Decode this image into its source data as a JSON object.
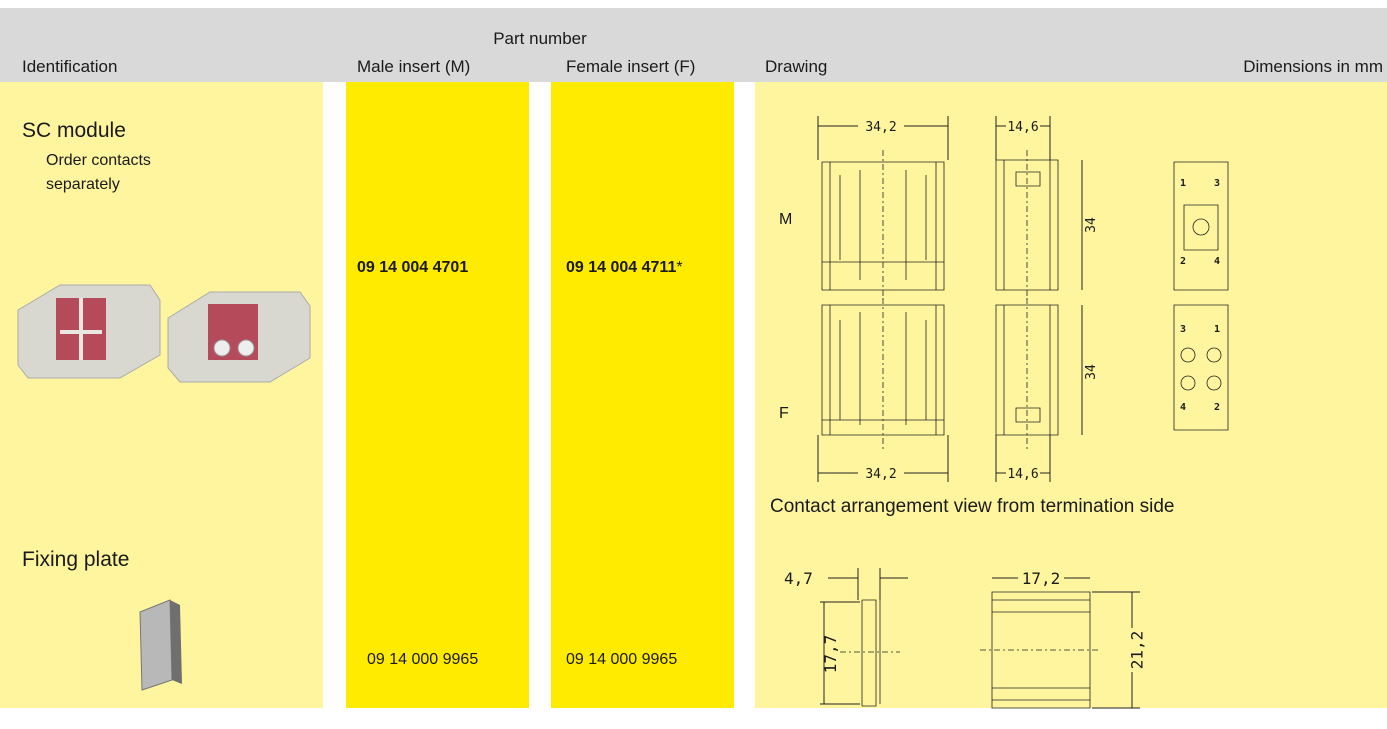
{
  "header": {
    "part_number": "Part number",
    "columns": [
      "Identification",
      "Male insert (M)",
      "Female insert (F)",
      "Drawing",
      "Dimensions in mm"
    ]
  },
  "rows": [
    {
      "title": "SC module",
      "note": [
        "Order contacts",
        "separately"
      ],
      "male": "09 14 004 4701",
      "female": "09 14 004 4711",
      "female_suffix": "*",
      "drawing": {
        "labels": [
          "M",
          "F"
        ],
        "dimensions": [
          "34,2",
          "14,6",
          "34",
          "34",
          "34,2",
          "14,6"
        ],
        "pins": [
          "1",
          "3",
          "2",
          "4",
          "3",
          "1",
          "4",
          "2"
        ],
        "caption": "Contact arrangement view from termination side"
      }
    },
    {
      "title": "Fixing plate",
      "male": "09 14 000 9965",
      "female": "09 14 000 9965",
      "drawing": {
        "dimensions": [
          "4,7",
          "17,7",
          "17,2",
          "21,2"
        ]
      }
    }
  ]
}
